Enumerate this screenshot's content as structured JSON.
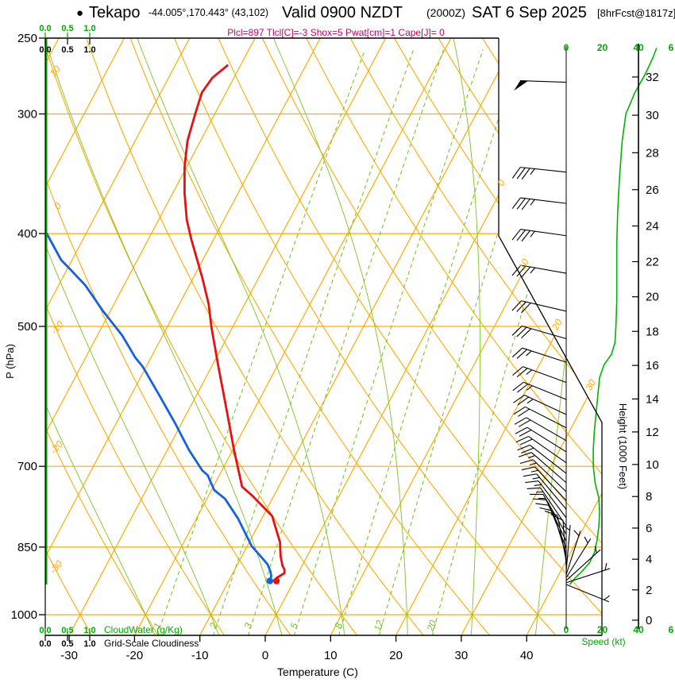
{
  "header": {
    "bullet": "●",
    "station": "Tekapo",
    "coords": "-44.005°,170.443° (43,102)",
    "valid": "Valid 0900 NZDT",
    "valid_zulu": "(2000Z)",
    "date": "SAT 6 Sep 2025",
    "fcst": "[8hrFcst@1817z]",
    "indices": "Plcl=897 Tlcl[C]=-3 Shox=5 Pwat[cm]=1 Cape[J]= 0"
  },
  "axes": {
    "pressure": {
      "title": "P (hPa)",
      "ticks": [
        250,
        300,
        400,
        500,
        700,
        850,
        1000
      ]
    },
    "temperature": {
      "title": "Temperature (C)",
      "ticks": [
        -30,
        -20,
        -10,
        0,
        10,
        20,
        30,
        40
      ]
    },
    "height": {
      "title": "Height (1000 Feet)",
      "ticks": [
        0,
        2,
        4,
        6,
        8,
        10,
        12,
        14,
        16,
        18,
        20,
        22,
        24,
        26,
        28,
        30,
        32
      ]
    },
    "speed": {
      "title": "Speed (kt)",
      "ticks": [
        0,
        20,
        40
      ],
      "clipped_tick": "6"
    },
    "cloudwater": {
      "title": "CloudWater (g/Kg)",
      "ticks": [
        "0.0",
        "0.5",
        "1.0"
      ]
    },
    "cloudiness": {
      "title": "Grid-Scale Cloudiness",
      "ticks": [
        "0.0",
        "0.5",
        "1.0"
      ]
    }
  },
  "guide_labels": {
    "isotherms": [
      0,
      10,
      20,
      30
    ],
    "dry_adiabats": [
      -30,
      -20,
      -10,
      0,
      10
    ],
    "mixing_ratio": [
      1,
      2,
      3,
      5,
      8,
      12,
      20
    ]
  },
  "colors": {
    "guide_orange": "#ffaa00",
    "guide_green": "#7ac520",
    "temperature_red": "#e81010",
    "dewpoint_blue": "#1661dd",
    "speed_green": "#00b400",
    "cloudwater_green": "#00a000",
    "scale_green_text": "#00aa00",
    "indices_magenta": "#cc0066",
    "axis_black": "#000000"
  },
  "chart_data": {
    "type": "line",
    "subtype": "skewt_logp_sounding",
    "pressure_unit": "hPa",
    "temperature_unit": "C",
    "pressure_range": [
      1000,
      250
    ],
    "temperature_axis_range": [
      -30,
      40
    ],
    "temperature_profile": {
      "p": [
        267,
        275,
        285,
        300,
        320,
        341,
        363,
        387,
        405,
        445,
        474,
        500,
        549,
        607,
        673,
        735,
        752,
        789,
        815,
        840,
        868,
        889,
        897,
        905,
        915,
        922
      ],
      "t": [
        -52.0,
        -53.3,
        -53.7,
        -53.0,
        -52.0,
        -50.3,
        -48.2,
        -45.7,
        -43.5,
        -38.6,
        -35.5,
        -33.3,
        -29.1,
        -24.5,
        -19.8,
        -15.6,
        -13.2,
        -8.6,
        -6.9,
        -5.3,
        -4.1,
        -3.0,
        -2.4,
        -2.1,
        -2.9,
        -2.7
      ]
    },
    "dewpoint_profile": {
      "p": [
        400,
        426,
        435,
        453,
        482,
        511,
        539,
        551,
        589,
        631,
        673,
        707,
        715,
        741,
        757,
        794,
        848,
        876,
        886,
        901,
        911,
        922
      ],
      "t": [
        -66.0,
        -61.7,
        -59.7,
        -55.9,
        -51.1,
        -46.2,
        -42.4,
        -40.5,
        -35.8,
        -31.0,
        -26.7,
        -23.0,
        -21.8,
        -19.6,
        -17.2,
        -13.6,
        -9.3,
        -6.4,
        -5.4,
        -4.4,
        -3.9,
        -3.7
      ]
    },
    "surface": {
      "p": 922,
      "t": -2.7,
      "td": -3.7
    },
    "wind_speed_profile": {
      "p": [
        930,
        915,
        900,
        882,
        862,
        838,
        810,
        782,
        755,
        728,
        700,
        672,
        645,
        618,
        590,
        565,
        548,
        535,
        520,
        500,
        470,
        440,
        410,
        380,
        350,
        320,
        300,
        285,
        272,
        262,
        256
      ],
      "kt": [
        2,
        5,
        9,
        13,
        15.5,
        17,
        18,
        18.5,
        18,
        16,
        15,
        15,
        15.5,
        16.5,
        17.5,
        18.5,
        21,
        25,
        27,
        27.5,
        28,
        28,
        28,
        28.5,
        29.5,
        31,
        33,
        38,
        44,
        48,
        50
      ]
    },
    "wind_barbs": [
      {
        "p": 278,
        "kt": 50,
        "dir": 272
      },
      {
        "p": 345,
        "kt": 35,
        "dir": 276
      },
      {
        "p": 372,
        "kt": 35,
        "dir": 277
      },
      {
        "p": 402,
        "kt": 35,
        "dir": 278
      },
      {
        "p": 440,
        "kt": 35,
        "dir": 280
      },
      {
        "p": 482,
        "kt": 30,
        "dir": 283
      },
      {
        "p": 515,
        "kt": 30,
        "dir": 286
      },
      {
        "p": 545,
        "kt": 25,
        "dir": 288
      },
      {
        "p": 572,
        "kt": 25,
        "dir": 290
      },
      {
        "p": 596,
        "kt": 25,
        "dir": 292
      },
      {
        "p": 618,
        "kt": 25,
        "dir": 295
      },
      {
        "p": 638,
        "kt": 20,
        "dir": 297
      },
      {
        "p": 658,
        "kt": 20,
        "dir": 300
      },
      {
        "p": 676,
        "kt": 20,
        "dir": 302
      },
      {
        "p": 694,
        "kt": 20,
        "dir": 305
      },
      {
        "p": 712,
        "kt": 20,
        "dir": 308
      },
      {
        "p": 728,
        "kt": 15,
        "dir": 311
      },
      {
        "p": 744,
        "kt": 15,
        "dir": 314
      },
      {
        "p": 760,
        "kt": 15,
        "dir": 317
      },
      {
        "p": 776,
        "kt": 15,
        "dir": 320
      },
      {
        "p": 792,
        "kt": 15,
        "dir": 323
      },
      {
        "p": 808,
        "kt": 15,
        "dir": 326
      },
      {
        "p": 824,
        "kt": 15,
        "dir": 330
      },
      {
        "p": 838,
        "kt": 10,
        "dir": 334
      },
      {
        "p": 852,
        "kt": 10,
        "dir": 338
      },
      {
        "p": 866,
        "kt": 10,
        "dir": 343
      },
      {
        "p": 878,
        "kt": 10,
        "dir": 349
      },
      {
        "p": 890,
        "kt": 10,
        "dir": 356
      },
      {
        "p": 900,
        "kt": 5,
        "dir": 5
      },
      {
        "p": 908,
        "kt": 5,
        "dir": 18
      },
      {
        "p": 915,
        "kt": 5,
        "dir": 32
      },
      {
        "p": 921,
        "kt": 5,
        "dir": 48
      },
      {
        "p": 926,
        "kt": 5,
        "dir": 72
      },
      {
        "p": 930,
        "kt": 5,
        "dir": 112
      }
    ],
    "cloud_water": {
      "p": [
        930,
        250
      ],
      "gkg": [
        0,
        0
      ]
    },
    "grid_scale_cloudiness": {
      "p": [
        930,
        250
      ],
      "frac": [
        0,
        0
      ]
    }
  }
}
